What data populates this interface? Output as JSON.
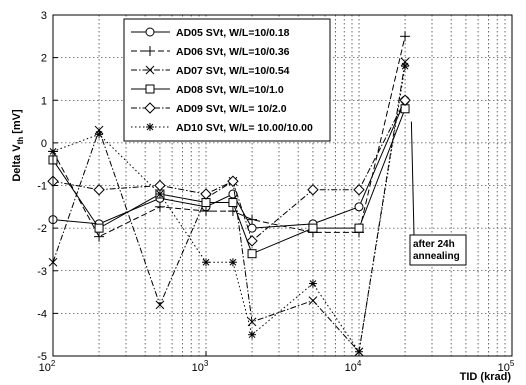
{
  "chart_data": {
    "type": "line",
    "xlabel": "TID (krad)",
    "ylabel_main": "Delta V",
    "ylabel_sub": "th",
    "ylabel_unit": " [mV]",
    "xscale": "log",
    "xlim": [
      100,
      100000
    ],
    "ylim": [
      -5,
      3
    ],
    "grid": true,
    "legend_placement": "top-center",
    "x_ticks": [
      {
        "value": 100,
        "base": "10",
        "exp": "2"
      },
      {
        "value": 1000,
        "base": "10",
        "exp": "3"
      },
      {
        "value": 10000,
        "base": "10",
        "exp": "4"
      },
      {
        "value": 100000,
        "base": "10",
        "exp": "5"
      }
    ],
    "y_ticks": [
      {
        "value": 3,
        "label": "3"
      },
      {
        "value": 2,
        "label": "2"
      },
      {
        "value": 1,
        "label": "1"
      },
      {
        "value": 0,
        "label": "0"
      },
      {
        "value": -1,
        "label": "-1"
      },
      {
        "value": -2,
        "label": "-2"
      },
      {
        "value": -3,
        "label": "-3"
      },
      {
        "value": -4,
        "label": "-4"
      },
      {
        "value": -5,
        "label": "-5"
      }
    ],
    "x": [
      100,
      200,
      500,
      1000,
      1500,
      2000,
      5000,
      10000,
      20000
    ],
    "series": [
      {
        "name": "AD05 SVt, W/L=10/0.18",
        "dash": "solid",
        "marker": "circle",
        "values": [
          -1.8,
          -1.9,
          -1.3,
          -1.5,
          -1.2,
          -2.0,
          -1.9,
          -1.5,
          1.0
        ]
      },
      {
        "name": "AD06 SVt, W/L=10/0.36",
        "dash": "dash",
        "marker": "plus",
        "values": [
          -0.2,
          -2.2,
          -1.5,
          -1.6,
          -1.6,
          -1.8,
          -2.1,
          -2.1,
          2.5
        ]
      },
      {
        "name": "AD07 SVt, W/L=10/0.54",
        "dash": "dashdot",
        "marker": "x",
        "values": [
          -2.8,
          0.3,
          -3.8,
          -1.3,
          -0.9,
          -4.2,
          -3.7,
          -4.9,
          1.9
        ]
      },
      {
        "name": "AD08 SVt, W/L=10/1.0",
        "dash": "solid",
        "marker": "square",
        "values": [
          -0.4,
          -2.0,
          -1.2,
          -1.4,
          -1.4,
          -2.6,
          -2.0,
          -2.0,
          0.8
        ]
      },
      {
        "name": "AD09 SVt, W/L= 10/2.0",
        "dash": "dashdot",
        "marker": "diamond",
        "values": [
          -0.9,
          -1.1,
          -1.0,
          -1.2,
          -0.9,
          -2.3,
          -1.1,
          -1.1,
          1.0
        ]
      },
      {
        "name": "AD10 SVt, W/L= 10.00/10.00",
        "dash": "dot",
        "marker": "star",
        "values": [
          -0.2,
          0.2,
          -1.2,
          -2.8,
          -2.8,
          -4.5,
          -3.3,
          -4.9,
          1.8
        ]
      }
    ],
    "annotation": {
      "lines": [
        "after 24h",
        "annealing"
      ],
      "point_to": {
        "x": 22000,
        "y": 0.5
      },
      "series_index": 5
    }
  }
}
